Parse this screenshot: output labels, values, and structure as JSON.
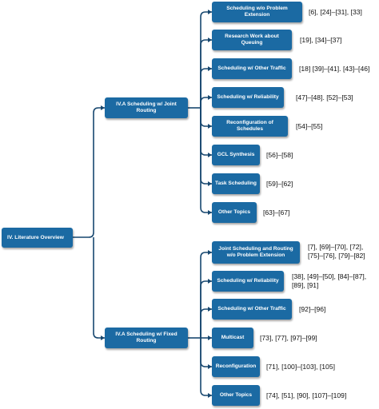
{
  "root": {
    "label": "IV. Literature Overview"
  },
  "branches": [
    {
      "label": "IV.A Scheduling w/ Joint Routing",
      "items": [
        {
          "label": "Scheduling w/o Problem Extension",
          "refs": "[6], [24]–[31], [33]"
        },
        {
          "label": "Research Work about Queuing",
          "refs": "[19], [34]–[37]"
        },
        {
          "label": "Scheduling w/ Other Traffic",
          "refs": "[18] [39]–[41]. [43]–[46]"
        },
        {
          "label": "Scheduling w/ Reliability",
          "refs": "[47]–[48]. [52]–[53]"
        },
        {
          "label": "Reconfiguration of Schedules",
          "refs": "[54]–[55]"
        },
        {
          "label": "GCL Synthesis",
          "refs": "[56]–[58]"
        },
        {
          "label": "Task Scheduling",
          "refs": "[59]–[62]"
        },
        {
          "label": "Other Topics",
          "refs": "[63]–[67]"
        }
      ]
    },
    {
      "label": "IV.A Scheduling w/ Fixed Routing",
      "items": [
        {
          "label": "Joint Scheduling and Routing w/o Problem Extension",
          "refs": "[7], [69]–[70], [72],\n[75]–[76], [79]–[82]"
        },
        {
          "label": "Scheduling w/ Reliability",
          "refs": "[38], [49]–[50], [84]–[87],\n[89], [91]"
        },
        {
          "label": "Scheduling w/ Other Traffic",
          "refs": "[92]–[96]"
        },
        {
          "label": "Multicast",
          "refs": "[73], [77], [97]–[99]"
        },
        {
          "label": "Reconfiguration",
          "refs": "[71], [100]–[103], [105]"
        },
        {
          "label": "Other Topics",
          "refs": "[74], [51], [90], [107]–[109]"
        }
      ]
    }
  ],
  "colors": {
    "node": "#1b6aa3",
    "connector": "#17476f",
    "text": "#ffffff"
  }
}
